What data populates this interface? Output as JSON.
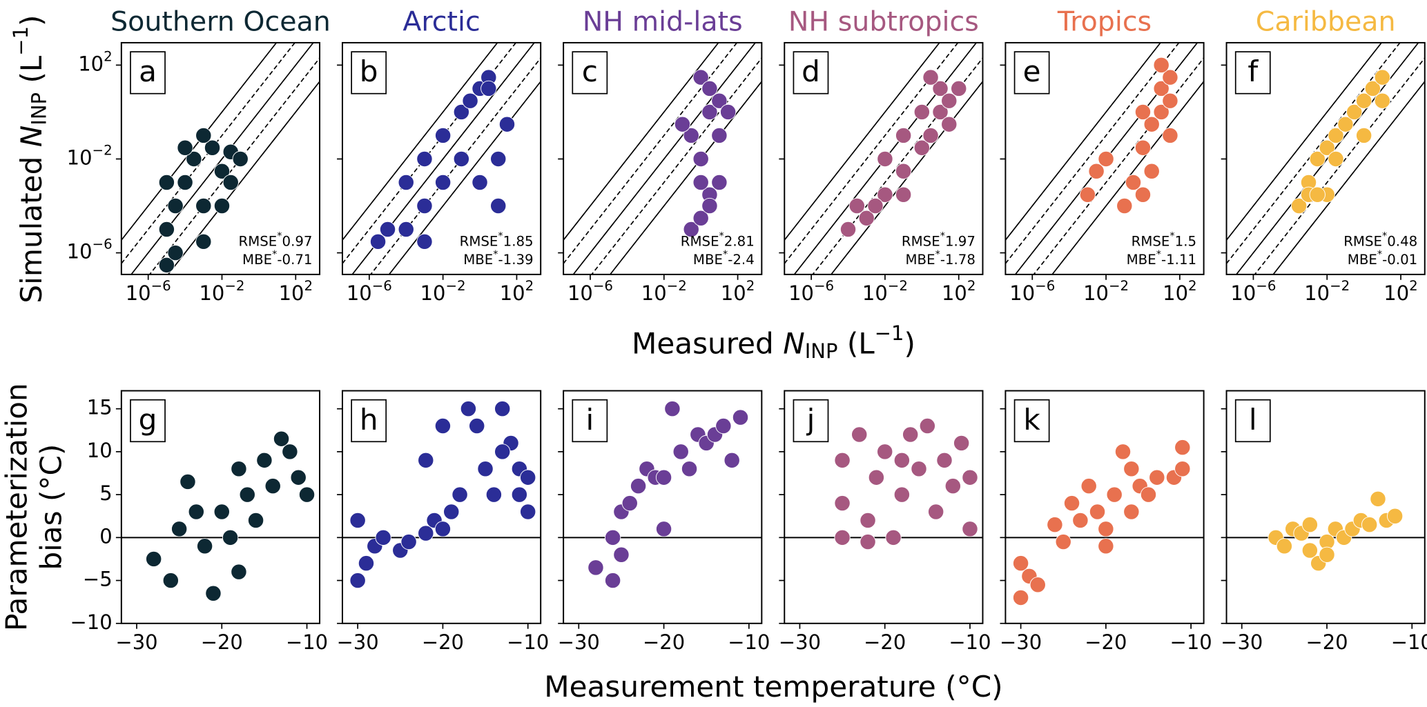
{
  "figure_labels": {
    "top_x_label": {
      "prefix": "Measured ",
      "symbol": "N",
      "subscript": "INP",
      "unit_open": " (L",
      "unit_sup": "−1",
      "unit_close": ")"
    },
    "top_y_label": {
      "prefix": "Simulated ",
      "symbol": "N",
      "subscript": "INP",
      "unit_open": " (L",
      "unit_sup": "−1",
      "unit_close": ")"
    },
    "bottom_y_label": [
      "Parameterization",
      "bias (°C)"
    ],
    "bottom_x_label": "Measurement temperature (°C)"
  },
  "chart_data": [
    {
      "type": "scatter",
      "title": "Southern Ocean",
      "panel_label": "a",
      "color": "#0d2833",
      "log": true,
      "xlim": [
        3.5e-08,
        2000
      ],
      "ylim": [
        1.2e-07,
        900
      ],
      "xticks": [
        {
          "value": 1e-06,
          "label": "10",
          "sup": "−6"
        },
        {
          "value": 0.01,
          "label": "10",
          "sup": "−2"
        },
        {
          "value": 100,
          "label": "10",
          "sup": "2"
        }
      ],
      "yticks": [
        {
          "value": 1e-06,
          "label": "10",
          "sup": "−6"
        },
        {
          "value": 0.01,
          "label": "10",
          "sup": "−2"
        },
        {
          "value": 100,
          "label": "10",
          "sup": "2"
        }
      ],
      "show_ytick_labels": true,
      "guides": [
        {
          "factor": 0.01,
          "style": "solid"
        },
        {
          "factor": 0.1,
          "style": "dashed"
        },
        {
          "factor": 1,
          "style": "solid"
        },
        {
          "factor": 10,
          "style": "dashed"
        },
        {
          "factor": 100,
          "style": "solid"
        }
      ],
      "x": [
        1e-05,
        1e-05,
        3e-05,
        0.0001,
        0.0003,
        0.001,
        0.003,
        0.01,
        0.03,
        0.1,
        3e-05,
        0.001,
        0.01,
        0.03,
        0.0001,
        0.001,
        1e-05
      ],
      "y": [
        3e-07,
        1e-05,
        0.0001,
        0.001,
        0.01,
        0.0001,
        0.03,
        0.003,
        0.02,
        0.01,
        1e-06,
        3e-06,
        0.0001,
        0.001,
        0.03,
        0.1,
        0.001
      ],
      "annotations": [
        {
          "label": "RMSE",
          "mark": "*",
          "value": 0.97
        },
        {
          "label": "MBE",
          "mark": "*",
          "value": -0.71
        }
      ]
    },
    {
      "type": "scatter",
      "title": "Arctic",
      "panel_label": "b",
      "color": "#2b2d97",
      "log": true,
      "xlim": [
        3.5e-08,
        2000
      ],
      "ylim": [
        1.2e-07,
        900
      ],
      "xticks": [
        {
          "value": 1e-06,
          "label": "10",
          "sup": "−6"
        },
        {
          "value": 0.01,
          "label": "10",
          "sup": "−2"
        },
        {
          "value": 100,
          "label": "10",
          "sup": "2"
        }
      ],
      "yticks": [
        1e-06,
        0.01,
        100
      ],
      "show_ytick_labels": false,
      "guides": [
        {
          "factor": 0.01,
          "style": "solid"
        },
        {
          "factor": 0.1,
          "style": "dashed"
        },
        {
          "factor": 1,
          "style": "solid"
        },
        {
          "factor": 10,
          "style": "dashed"
        },
        {
          "factor": 100,
          "style": "solid"
        }
      ],
      "x": [
        3e-06,
        1e-05,
        0.0001,
        0.001,
        0.001,
        0.01,
        0.01,
        0.1,
        0.1,
        1,
        3,
        0.3,
        1,
        10,
        30,
        10,
        0.0001,
        0.001,
        3
      ],
      "y": [
        3e-06,
        1e-05,
        1e-05,
        0.0001,
        0.01,
        0.001,
        0.1,
        0.01,
        1,
        10,
        30,
        3,
        0.001,
        0.01,
        0.3,
        0.0001,
        0.001,
        3e-06,
        10
      ],
      "annotations": [
        {
          "label": "RMSE",
          "mark": "*",
          "value": 1.85
        },
        {
          "label": "MBE",
          "mark": "*",
          "value": -1.39
        }
      ]
    },
    {
      "type": "scatter",
      "title": "NH mid-lats",
      "panel_label": "c",
      "color": "#6a3e96",
      "log": true,
      "xlim": [
        3.5e-08,
        2000
      ],
      "ylim": [
        1.2e-07,
        900
      ],
      "xticks": [
        {
          "value": 1e-06,
          "label": "10",
          "sup": "−6"
        },
        {
          "value": 0.01,
          "label": "10",
          "sup": "−2"
        },
        {
          "value": 100,
          "label": "10",
          "sup": "2"
        }
      ],
      "yticks": [
        1e-06,
        0.01,
        100
      ],
      "show_ytick_labels": false,
      "guides": [
        {
          "factor": 0.01,
          "style": "solid"
        },
        {
          "factor": 0.1,
          "style": "dashed"
        },
        {
          "factor": 1,
          "style": "solid"
        },
        {
          "factor": 10,
          "style": "dashed"
        },
        {
          "factor": 100,
          "style": "solid"
        }
      ],
      "x": [
        0.3,
        1,
        3,
        1,
        0.3,
        3,
        10,
        1,
        3,
        10,
        0.1,
        3,
        10,
        1,
        30
      ],
      "y": [
        1e-05,
        3e-05,
        0.0003,
        0.01,
        0.1,
        1,
        0.1,
        30,
        10,
        3,
        0.3,
        0.0001,
        0.001,
        0.001,
        1
      ],
      "annotations": [
        {
          "label": "RMSE",
          "mark": "*",
          "value": 2.81
        },
        {
          "label": "MBE",
          "mark": "*",
          "value": -2.4
        }
      ]
    },
    {
      "type": "scatter",
      "title": "NH subtropics",
      "panel_label": "d",
      "color": "#a65880",
      "log": true,
      "xlim": [
        3.5e-08,
        2000
      ],
      "ylim": [
        1.2e-07,
        900
      ],
      "xticks": [
        {
          "value": 1e-06,
          "label": "10",
          "sup": "−6"
        },
        {
          "value": 0.01,
          "label": "10",
          "sup": "−2"
        },
        {
          "value": 100,
          "label": "10",
          "sup": "2"
        }
      ],
      "yticks": [
        1e-06,
        0.01,
        100
      ],
      "show_ytick_labels": false,
      "guides": [
        {
          "factor": 0.01,
          "style": "solid"
        },
        {
          "factor": 0.1,
          "style": "dashed"
        },
        {
          "factor": 1,
          "style": "solid"
        },
        {
          "factor": 10,
          "style": "dashed"
        },
        {
          "factor": 100,
          "style": "solid"
        }
      ],
      "x": [
        0.0001,
        0.0003,
        0.001,
        0.01,
        0.01,
        0.1,
        0.1,
        1,
        1,
        10,
        10,
        30,
        100,
        0.003,
        3,
        30,
        0.1,
        3
      ],
      "y": [
        1e-05,
        0.0001,
        3e-05,
        0.0003,
        0.01,
        0.003,
        0.1,
        0.03,
        1,
        1,
        10,
        3,
        10,
        0.0001,
        0.1,
        0.3,
        0.0003,
        30
      ],
      "annotations": [
        {
          "label": "RMSE",
          "mark": "*",
          "value": 1.97
        },
        {
          "label": "MBE",
          "mark": "*",
          "value": -1.78
        }
      ]
    },
    {
      "type": "scatter",
      "title": "Tropics",
      "panel_label": "e",
      "color": "#e8714f",
      "log": true,
      "xlim": [
        3.5e-08,
        2000
      ],
      "ylim": [
        1.2e-07,
        900
      ],
      "xticks": [
        {
          "value": 1e-06,
          "label": "10",
          "sup": "−6"
        },
        {
          "value": 0.01,
          "label": "10",
          "sup": "−2"
        },
        {
          "value": 100,
          "label": "10",
          "sup": "2"
        }
      ],
      "yticks": [
        1e-06,
        0.01,
        100
      ],
      "show_ytick_labels": false,
      "guides": [
        {
          "factor": 0.01,
          "style": "solid"
        },
        {
          "factor": 0.1,
          "style": "dashed"
        },
        {
          "factor": 1,
          "style": "solid"
        },
        {
          "factor": 10,
          "style": "dashed"
        },
        {
          "factor": 100,
          "style": "solid"
        }
      ],
      "x": [
        0.001,
        0.003,
        0.01,
        0.1,
        1,
        1,
        3,
        10,
        10,
        30,
        10,
        3,
        30,
        1,
        30,
        0.3
      ],
      "y": [
        0.0003,
        0.003,
        0.01,
        0.0001,
        0.0003,
        0.03,
        0.3,
        1,
        10,
        30,
        100,
        0.003,
        0.1,
        1,
        3,
        0.001
      ],
      "annotations": [
        {
          "label": "RMSE",
          "mark": "*",
          "value": 1.5
        },
        {
          "label": "MBE",
          "mark": "*",
          "value": -1.11
        }
      ]
    },
    {
      "type": "scatter",
      "title": "Caribbean",
      "panel_label": "f",
      "color": "#f5b942",
      "log": true,
      "xlim": [
        3.5e-08,
        2000
      ],
      "ylim": [
        1.2e-07,
        900
      ],
      "xticks": [
        {
          "value": 1e-06,
          "label": "10",
          "sup": "−6"
        },
        {
          "value": 0.01,
          "label": "10",
          "sup": "−2"
        },
        {
          "value": 100,
          "label": "10",
          "sup": "2"
        }
      ],
      "yticks": [
        1e-06,
        0.01,
        100
      ],
      "show_ytick_labels": false,
      "guides": [
        {
          "factor": 0.01,
          "style": "solid"
        },
        {
          "factor": 0.1,
          "style": "dashed"
        },
        {
          "factor": 1,
          "style": "solid"
        },
        {
          "factor": 10,
          "style": "dashed"
        },
        {
          "factor": 100,
          "style": "solid"
        }
      ],
      "x": [
        0.0003,
        0.001,
        0.001,
        0.003,
        0.01,
        0.01,
        0.03,
        0.1,
        0.3,
        1,
        3,
        10,
        10,
        0.03,
        0.003,
        1
      ],
      "y": [
        0.0001,
        0.001,
        0.0003,
        0.01,
        0.0003,
        0.03,
        0.1,
        0.3,
        1,
        3,
        10,
        3,
        30,
        0.01,
        0.0003,
        0.1
      ],
      "annotations": [
        {
          "label": "RMSE",
          "mark": "*",
          "value": 0.48
        },
        {
          "label": "MBE",
          "mark": "*",
          "value": -0.01
        }
      ]
    },
    {
      "type": "scatter",
      "panel_label": "g",
      "color": "#0d2833",
      "log": false,
      "xlim": [
        -31.8,
        -8.5
      ],
      "ylim": [
        -10,
        17.1
      ],
      "xticks": [
        {
          "value": -30,
          "label": "−30"
        },
        {
          "value": -20,
          "label": "−20"
        },
        {
          "value": -10,
          "label": "−10"
        }
      ],
      "yticks": [
        {
          "value": -10,
          "label": "−10"
        },
        {
          "value": -5,
          "label": "−5"
        },
        0,
        5,
        10,
        15
      ],
      "show_ytick_labels": true,
      "hline": 0,
      "x": [
        -28,
        -26,
        -25,
        -24,
        -22,
        -21,
        -20,
        -19,
        -18,
        -17,
        -16,
        -15,
        -14,
        -12,
        -11,
        -10,
        -13,
        -23,
        -18
      ],
      "y": [
        -2.5,
        -5,
        1,
        6.5,
        -1,
        -6.5,
        3,
        0,
        8,
        5,
        2,
        9,
        6,
        10,
        7,
        5,
        11.5,
        3,
        -4
      ]
    },
    {
      "type": "scatter",
      "panel_label": "h",
      "color": "#2b2d97",
      "log": false,
      "xlim": [
        -31.8,
        -8.5
      ],
      "ylim": [
        -10,
        17.1
      ],
      "xticks": [
        {
          "value": -30,
          "label": "−30"
        },
        {
          "value": -20,
          "label": "−20"
        },
        {
          "value": -10,
          "label": "−10"
        }
      ],
      "yticks": [
        -10,
        -5,
        0,
        5,
        10,
        15
      ],
      "show_ytick_labels": false,
      "hline": 0,
      "x": [
        -30,
        -29,
        -28,
        -27,
        -25,
        -24,
        -22,
        -21,
        -20,
        -19,
        -18,
        -17,
        -16,
        -15,
        -14,
        -13,
        -12,
        -11,
        -10,
        -10,
        -22,
        -20,
        -30,
        -11,
        -13
      ],
      "y": [
        -5,
        -3,
        -1,
        0,
        -1.5,
        -0.5,
        0.5,
        2,
        1,
        3,
        5,
        15,
        13,
        8,
        5,
        15,
        11,
        8,
        3,
        7,
        9,
        13,
        2,
        5,
        10
      ]
    },
    {
      "type": "scatter",
      "panel_label": "i",
      "color": "#6a3e96",
      "log": false,
      "xlim": [
        -31.8,
        -8.5
      ],
      "ylim": [
        -10,
        17.1
      ],
      "xticks": [
        {
          "value": -30,
          "label": "−30"
        },
        {
          "value": -20,
          "label": "−20"
        },
        {
          "value": -10,
          "label": "−10"
        }
      ],
      "yticks": [
        -10,
        -5,
        0,
        5,
        10,
        15
      ],
      "show_ytick_labels": false,
      "hline": 0,
      "x": [
        -28,
        -26,
        -26,
        -25,
        -24,
        -23,
        -22,
        -21,
        -20,
        -19,
        -18,
        -17,
        -16,
        -15,
        -14,
        -13,
        -11,
        -12,
        -25,
        -20
      ],
      "y": [
        -3.5,
        -5,
        0,
        3,
        4,
        6,
        8,
        7,
        7,
        15,
        10,
        8,
        12,
        11,
        12,
        13,
        14,
        9,
        -2,
        1
      ]
    },
    {
      "type": "scatter",
      "panel_label": "j",
      "color": "#a65880",
      "log": false,
      "xlim": [
        -31.8,
        -8.5
      ],
      "ylim": [
        -10,
        17.1
      ],
      "xticks": [
        {
          "value": -30,
          "label": "−30"
        },
        {
          "value": -20,
          "label": "−20"
        },
        {
          "value": -10,
          "label": "−10"
        }
      ],
      "yticks": [
        -10,
        -5,
        0,
        5,
        10,
        15
      ],
      "show_ytick_labels": false,
      "hline": 0,
      "x": [
        -25,
        -25,
        -25,
        -23,
        -22,
        -21,
        -20,
        -19,
        -18,
        -17,
        -16,
        -15,
        -14,
        -13,
        -12,
        -11,
        -10,
        -10,
        -22,
        -18
      ],
      "y": [
        0,
        4,
        9,
        12,
        2,
        7,
        10,
        0,
        5,
        12,
        8,
        13,
        3,
        9,
        6,
        11,
        1,
        7,
        -0.5,
        9
      ]
    },
    {
      "type": "scatter",
      "panel_label": "k",
      "color": "#e8714f",
      "log": false,
      "xlim": [
        -31.8,
        -8.5
      ],
      "ylim": [
        -10,
        17.1
      ],
      "xticks": [
        {
          "value": -30,
          "label": "−30"
        },
        {
          "value": -20,
          "label": "−20"
        },
        {
          "value": -10,
          "label": "−10"
        }
      ],
      "yticks": [
        -10,
        -5,
        0,
        5,
        10,
        15
      ],
      "show_ytick_labels": false,
      "hline": 0,
      "x": [
        -30,
        -30,
        -29,
        -28,
        -26,
        -25,
        -24,
        -23,
        -22,
        -21,
        -20,
        -19,
        -18,
        -17,
        -16,
        -15,
        -14,
        -12,
        -11,
        -11,
        -20,
        -17
      ],
      "y": [
        -7,
        -3,
        -4.5,
        -5.5,
        1.5,
        -0.5,
        4,
        2,
        6,
        3,
        1,
        5,
        10,
        8,
        6,
        5,
        7,
        7,
        8,
        10.5,
        -1,
        3
      ]
    },
    {
      "type": "scatter",
      "panel_label": "l",
      "color": "#f5b942",
      "log": false,
      "xlim": [
        -31.8,
        -8.5
      ],
      "ylim": [
        -10,
        17.1
      ],
      "xticks": [
        {
          "value": -30,
          "label": "−30"
        },
        {
          "value": -20,
          "label": "−20"
        },
        {
          "value": -10,
          "label": "−10"
        }
      ],
      "yticks": [
        -10,
        -5,
        0,
        5,
        10,
        15
      ],
      "show_ytick_labels": false,
      "hline": 0,
      "x": [
        -26,
        -25,
        -24,
        -23,
        -22,
        -21,
        -20,
        -19,
        -18,
        -17,
        -16,
        -15,
        -14,
        -13,
        -12,
        -22,
        -20
      ],
      "y": [
        0,
        -1,
        1,
        0.5,
        -1.5,
        -3,
        -0.5,
        1,
        0,
        1,
        2,
        1.5,
        4.5,
        2,
        2.5,
        1.5,
        -2
      ]
    }
  ]
}
